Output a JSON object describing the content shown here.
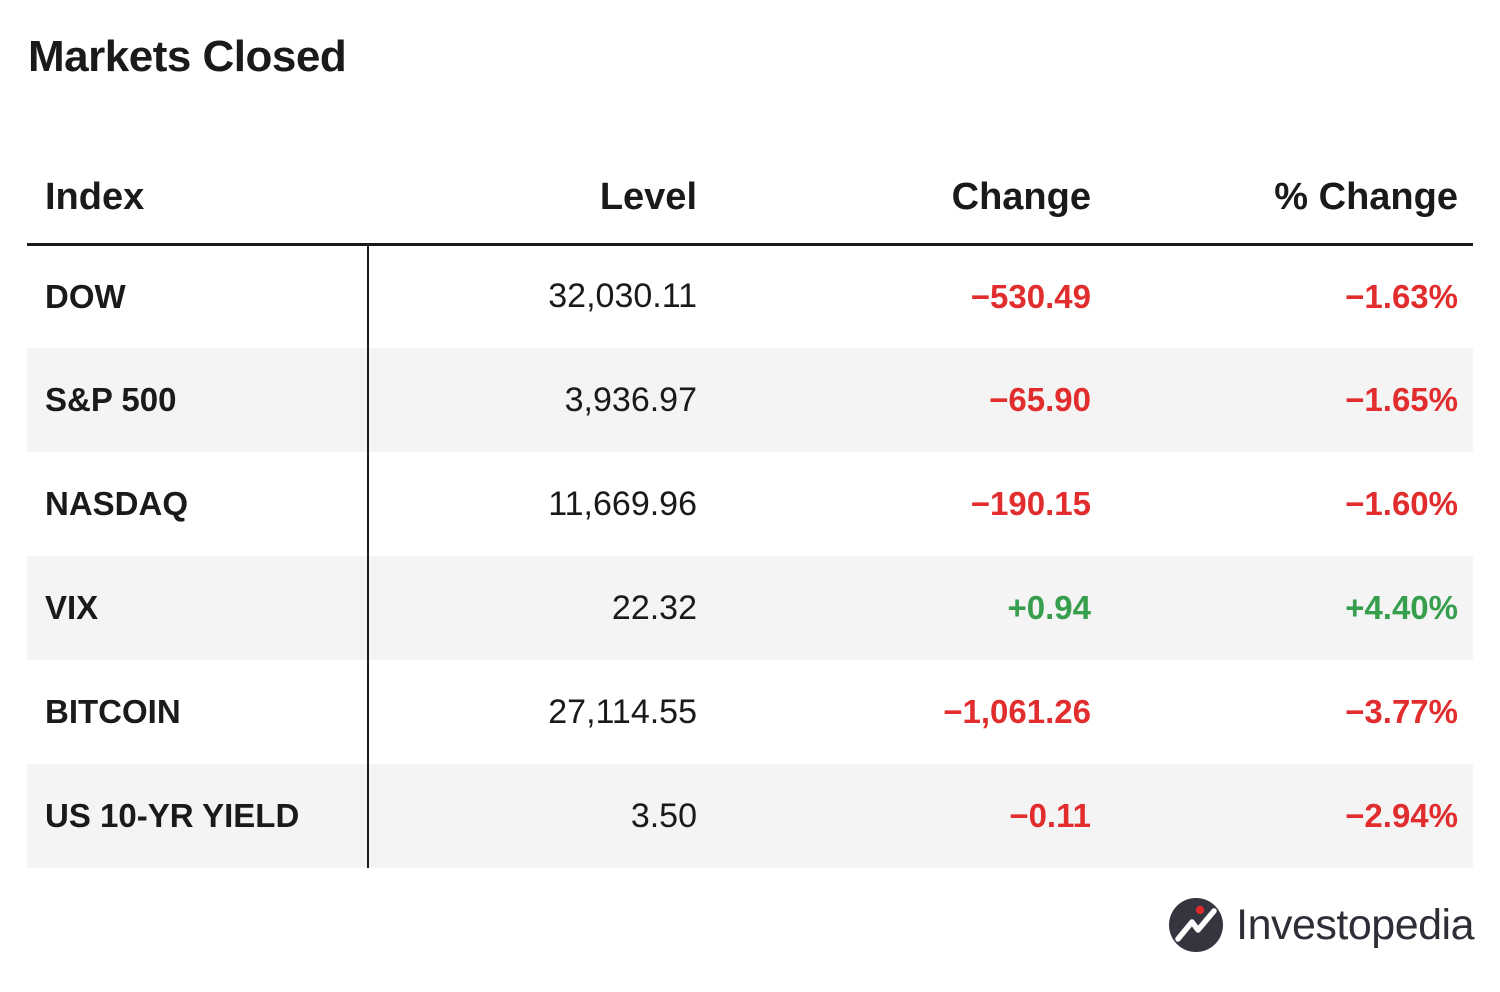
{
  "title": "Markets Closed",
  "table": {
    "headers": {
      "index": "Index",
      "level": "Level",
      "change": "Change",
      "pct_change": "% Change"
    },
    "rows": [
      {
        "index": "DOW",
        "level": "32,030.11",
        "change": "−530.49",
        "pct_change": "−1.63%",
        "direction": "down"
      },
      {
        "index": "S&P 500",
        "level": "3,936.97",
        "change": "−65.90",
        "pct_change": "−1.65%",
        "direction": "down"
      },
      {
        "index": "NASDAQ",
        "level": "11,669.96",
        "change": "−190.15",
        "pct_change": "−1.60%",
        "direction": "down"
      },
      {
        "index": "VIX",
        "level": "22.32",
        "change": "+0.94",
        "pct_change": "+4.40%",
        "direction": "up"
      },
      {
        "index": "BITCOIN",
        "level": "27,114.55",
        "change": "−1,061.26",
        "pct_change": "−3.77%",
        "direction": "down"
      },
      {
        "index": "US 10-YR YIELD",
        "level": "3.50",
        "change": "−0.11",
        "pct_change": "−2.94%",
        "direction": "down"
      }
    ]
  },
  "chart_data": {
    "type": "table",
    "title": "Markets Closed",
    "columns": [
      "Index",
      "Level",
      "Change",
      "% Change"
    ],
    "rows": [
      [
        "DOW",
        32030.11,
        -530.49,
        -1.63
      ],
      [
        "S&P 500",
        3936.97,
        -65.9,
        -1.65
      ],
      [
        "NASDAQ",
        11669.96,
        -190.15,
        -1.6
      ],
      [
        "VIX",
        22.32,
        0.94,
        4.4
      ],
      [
        "BITCOIN",
        27114.55,
        -1061.26,
        -3.77
      ],
      [
        "US 10-YR YIELD",
        3.5,
        -0.11,
        -2.94
      ]
    ],
    "layout_hints": {
      "zebra_stripes": true,
      "negative_color_rule": "red when change < 0, green when change > 0"
    }
  },
  "colors": {
    "negative": "#e12d2d",
    "positive": "#379e4d",
    "stripe": "#f4f4f4",
    "text": "#1a1a1a",
    "logo_text": "#2d2e36",
    "logo_circle": "#34353f",
    "logo_dot": "#e02b2b"
  },
  "branding": {
    "logo_text": "Investopedia"
  }
}
